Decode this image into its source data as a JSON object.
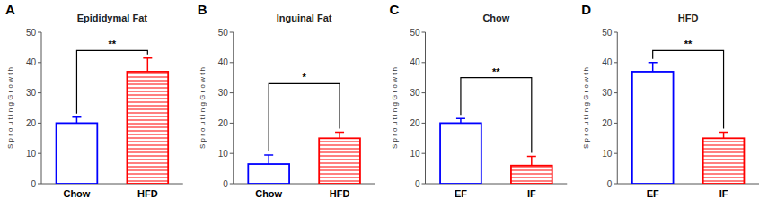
{
  "chart_data": [
    {
      "type": "bar",
      "label": "A",
      "title": "Epididymal Fat",
      "ylabel": "S p r o u t i n g   G r o w t h",
      "categories": [
        "Chow",
        "HFD"
      ],
      "values": [
        20.0,
        37.0
      ],
      "errors": [
        2.0,
        4.5
      ],
      "colors": [
        "#0000FF",
        "#FF0000"
      ],
      "ylim": [
        0,
        50
      ],
      "yticks": [
        0,
        10,
        20,
        30,
        40,
        50
      ],
      "grid": false,
      "annotations": [
        {
          "text": "**",
          "y": 44
        }
      ]
    },
    {
      "type": "bar",
      "label": "B",
      "title": "Inguinal Fat",
      "ylabel": "S p r o u t i n g   G r o w t h",
      "categories": [
        "Chow",
        "HFD"
      ],
      "values": [
        6.5,
        15.0
      ],
      "errors": [
        3.0,
        2.0
      ],
      "colors": [
        "#0000FF",
        "#FF0000"
      ],
      "ylim": [
        0,
        50
      ],
      "yticks": [
        0,
        10,
        20,
        30,
        40,
        50
      ],
      "grid": false,
      "annotations": [
        {
          "text": "*",
          "y": 33
        }
      ]
    },
    {
      "type": "bar",
      "label": "C",
      "title": "Chow",
      "ylabel": "S p r o u t i n g   G r o w t h",
      "categories": [
        "EF",
        "IF"
      ],
      "values": [
        20.0,
        6.0
      ],
      "errors": [
        1.5,
        3.0
      ],
      "colors": [
        "#0000FF",
        "#FF0000"
      ],
      "ylim": [
        0,
        50
      ],
      "yticks": [
        0,
        10,
        20,
        30,
        40,
        50
      ],
      "grid": false,
      "annotations": [
        {
          "text": "**",
          "y": 35
        }
      ]
    },
    {
      "type": "bar",
      "label": "D",
      "title": "HFD",
      "ylabel": "S p r o u t i n g   G r o w t h",
      "categories": [
        "EF",
        "IF"
      ],
      "values": [
        37.0,
        15.0
      ],
      "errors": [
        3.0,
        2.0
      ],
      "colors": [
        "#0000FF",
        "#FF0000"
      ],
      "ylim": [
        0,
        50
      ],
      "yticks": [
        0,
        10,
        20,
        30,
        40,
        50
      ],
      "grid": false,
      "annotations": [
        {
          "text": "**",
          "y": 44
        }
      ]
    }
  ]
}
